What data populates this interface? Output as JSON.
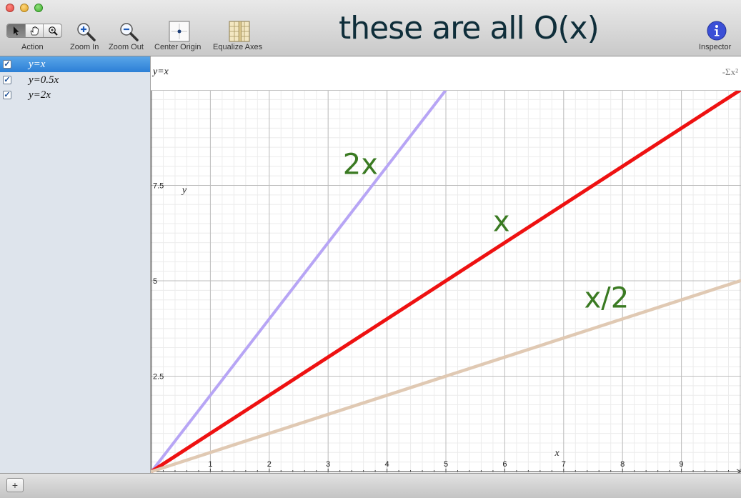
{
  "toolbar": {
    "action_label": "Action",
    "zoom_in_label": "Zoom In",
    "zoom_out_label": "Zoom Out",
    "center_origin_label": "Center Origin",
    "equalize_axes_label": "Equalize Axes",
    "inspector_label": "Inspector",
    "title": "these are all O(x)"
  },
  "sidebar": {
    "equations": [
      {
        "label": "y=x",
        "checked": true,
        "selected": true
      },
      {
        "label": "y=0.5x",
        "checked": true,
        "selected": false
      },
      {
        "label": "y=2x",
        "checked": true,
        "selected": false
      }
    ]
  },
  "equation_bar": {
    "value": "y=x",
    "sigma_icon": "-Σx²"
  },
  "chart_data": {
    "type": "line",
    "x_axis_label": "x",
    "y_axis_label": "y",
    "xlim": [
      0,
      10
    ],
    "ylim": [
      0,
      10
    ],
    "x_ticks": [
      "1",
      "2",
      "3",
      "4",
      "5",
      "6",
      "7",
      "8",
      "9"
    ],
    "y_ticks": [
      "2.5",
      "5",
      "7.5"
    ],
    "grid": true,
    "series": [
      {
        "name": "2x",
        "color": "#b7a5f5",
        "points": [
          [
            0,
            0
          ],
          [
            5,
            10
          ]
        ]
      },
      {
        "name": "x",
        "color": "#ee1111",
        "points": [
          [
            0,
            0
          ],
          [
            10,
            10
          ]
        ]
      },
      {
        "name": "x/2",
        "color": "#e0c9b3",
        "points": [
          [
            0,
            0
          ],
          [
            10,
            5
          ]
        ]
      }
    ],
    "annotation_color": "#3a7a22"
  },
  "bottom": {
    "add_button": "+"
  }
}
